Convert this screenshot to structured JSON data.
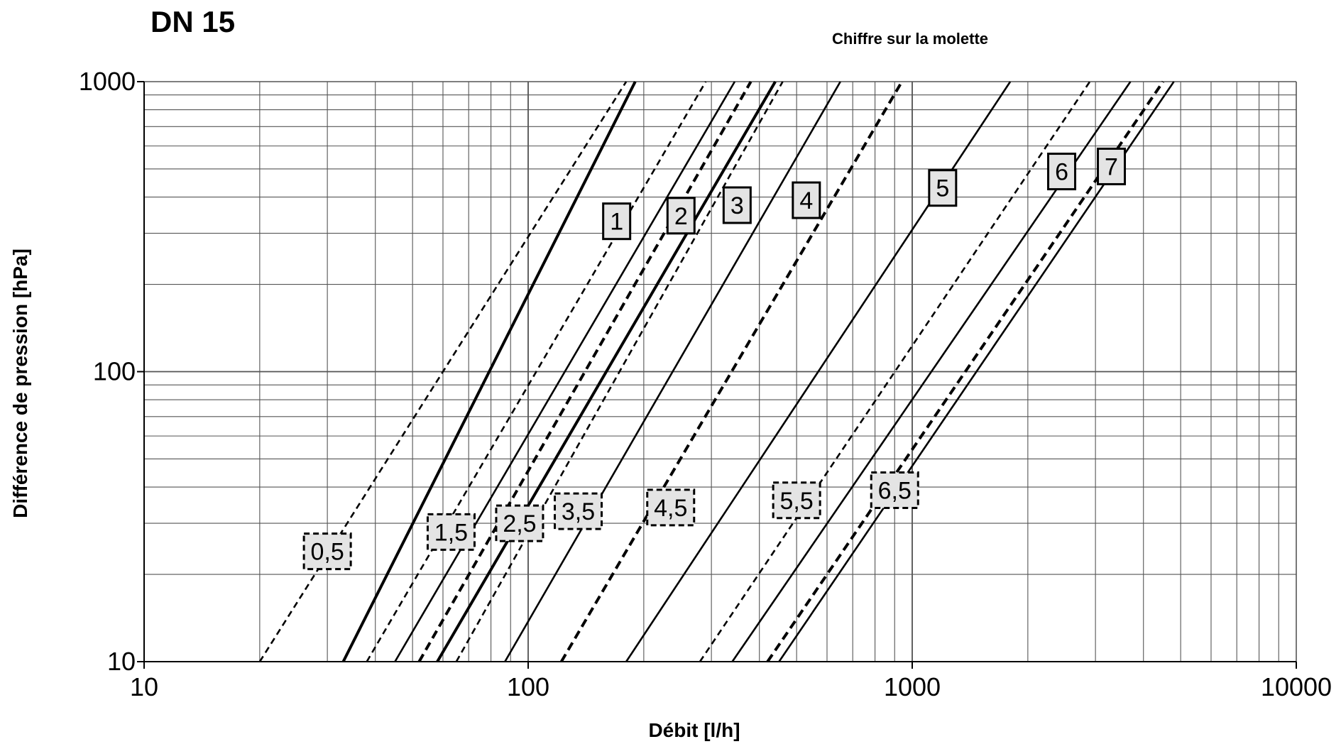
{
  "chart_data": {
    "type": "line",
    "title": "DN 15",
    "subtitle": "Chiffre sur la molette",
    "xlabel": "Débit [l/h]",
    "ylabel": "Différence de pression [hPa]",
    "x_scale": "log",
    "y_scale": "log",
    "xlim": [
      10,
      10000
    ],
    "ylim": [
      10,
      1000
    ],
    "x_ticks": [
      "10",
      "100",
      "1000",
      "10000"
    ],
    "y_ticks": [
      "10",
      "100",
      "1000"
    ],
    "grid": true,
    "series": [
      {
        "name": "0,5",
        "style": "dashed",
        "x": [
          20,
          180
        ],
        "y": [
          10,
          1000
        ],
        "label_at": [
          30,
          24
        ]
      },
      {
        "name": "1",
        "style": "solid-bold",
        "x": [
          33,
          190
        ],
        "y": [
          10,
          1000
        ],
        "label_at": [
          170,
          330
        ]
      },
      {
        "name": "1,5",
        "style": "dashed",
        "x": [
          38,
          290
        ],
        "y": [
          10,
          1000
        ],
        "label_at": [
          63,
          28
        ]
      },
      {
        "name": "2",
        "style": "solid",
        "x": [
          45,
          345
        ],
        "y": [
          10,
          1000
        ],
        "label_at": [
          250,
          345
        ]
      },
      {
        "name": "2,5",
        "style": "dashed-bold",
        "x": [
          52,
          380
        ],
        "y": [
          10,
          1000
        ],
        "label_at": [
          95,
          30
        ]
      },
      {
        "name": "3",
        "style": "solid-bold",
        "x": [
          58,
          440
        ],
        "y": [
          10,
          1000
        ],
        "label_at": [
          350,
          375
        ]
      },
      {
        "name": "3,5",
        "style": "dashed",
        "x": [
          65,
          460
        ],
        "y": [
          10,
          1000
        ],
        "label_at": [
          135,
          33
        ]
      },
      {
        "name": "4",
        "style": "solid",
        "x": [
          87,
          650
        ],
        "y": [
          10,
          1000
        ],
        "label_at": [
          530,
          390
        ]
      },
      {
        "name": "4,5",
        "style": "dashed-bold",
        "x": [
          122,
          940
        ],
        "y": [
          10,
          1000
        ],
        "label_at": [
          235,
          34
        ]
      },
      {
        "name": "5",
        "style": "solid",
        "x": [
          180,
          1800
        ],
        "y": [
          10,
          1000
        ],
        "label_at": [
          1200,
          430
        ]
      },
      {
        "name": "5,5",
        "style": "dashed",
        "x": [
          280,
          2900
        ],
        "y": [
          10,
          1000
        ],
        "label_at": [
          500,
          36
        ]
      },
      {
        "name": "6",
        "style": "solid",
        "x": [
          340,
          3700
        ],
        "y": [
          10,
          1000
        ],
        "label_at": [
          2450,
          490
        ]
      },
      {
        "name": "6,5",
        "style": "dashed-bold",
        "x": [
          420,
          4500
        ],
        "y": [
          10,
          1000
        ],
        "label_at": [
          900,
          39
        ]
      },
      {
        "name": "7",
        "style": "solid",
        "x": [
          450,
          4800
        ],
        "y": [
          10,
          1000
        ],
        "label_at": [
          3300,
          510
        ]
      }
    ]
  }
}
